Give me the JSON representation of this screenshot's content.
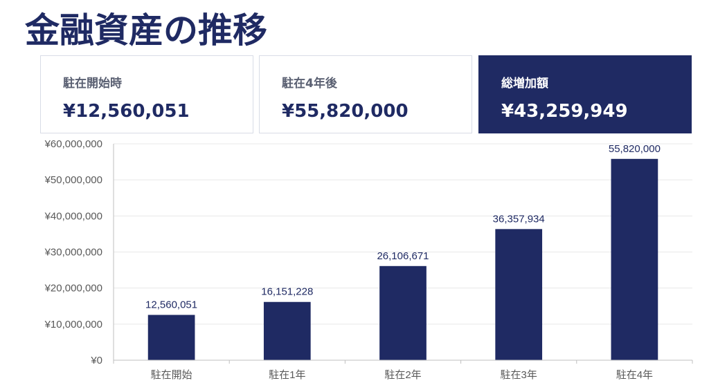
{
  "title": "金融資産の推移",
  "summary_cards": [
    {
      "label": "駐在開始時",
      "value": "¥12,560,051"
    },
    {
      "label": "駐在4年後",
      "value": "¥55,820,000"
    },
    {
      "label": "総増加額",
      "value": "¥43,259,949"
    }
  ],
  "colors": {
    "primary": "#1f2a63",
    "card_border": "#d8dce6",
    "grid": "#e8e8e8",
    "axis_text": "#595959"
  },
  "chart_data": {
    "type": "bar",
    "categories": [
      "駐在開始",
      "駐在1年",
      "駐在2年",
      "駐在3年",
      "駐在4年"
    ],
    "values": [
      12560051,
      16151228,
      26106671,
      36357934,
      55820000
    ],
    "data_labels": [
      "12,560,051",
      "16,151,228",
      "26,106,671",
      "36,357,934",
      "55,820,000"
    ],
    "y_ticks": [
      0,
      10000000,
      20000000,
      30000000,
      40000000,
      50000000,
      60000000
    ],
    "y_tick_labels": [
      "¥0",
      "¥10,000,000",
      "¥20,000,000",
      "¥30,000,000",
      "¥40,000,000",
      "¥50,000,000",
      "¥60,000,000"
    ],
    "ylim": [
      0,
      60000000
    ],
    "grid": true,
    "legend": false
  }
}
